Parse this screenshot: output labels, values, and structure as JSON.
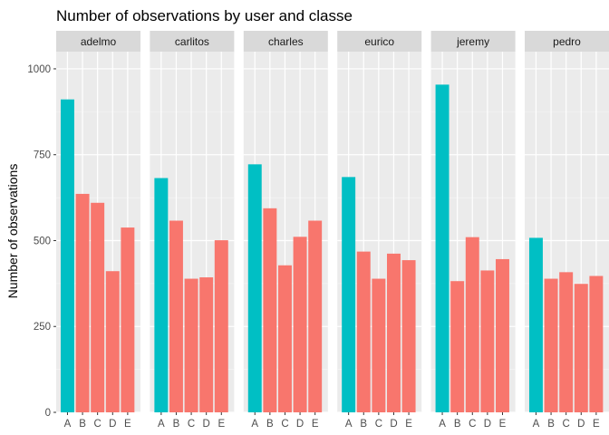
{
  "chart_data": {
    "type": "bar",
    "title": "Number of observations by user and classe",
    "xlabel": "",
    "ylabel": "Number of observations",
    "ylim": [
      0,
      1050
    ],
    "yticks": [
      0,
      250,
      500,
      750,
      1000
    ],
    "categories": [
      "A",
      "B",
      "C",
      "D",
      "E"
    ],
    "facets": [
      {
        "name": "adelmo",
        "values": [
          911,
          636,
          610,
          411,
          538
        ]
      },
      {
        "name": "carlitos",
        "values": [
          682,
          558,
          389,
          393,
          501
        ]
      },
      {
        "name": "charles",
        "values": [
          722,
          594,
          428,
          511,
          558
        ]
      },
      {
        "name": "eurico",
        "values": [
          685,
          468,
          389,
          462,
          443
        ]
      },
      {
        "name": "jeremy",
        "values": [
          954,
          382,
          510,
          413,
          446
        ]
      },
      {
        "name": "pedro",
        "values": [
          508,
          389,
          408,
          374,
          397
        ]
      }
    ],
    "highlight_category": "A",
    "grid": true,
    "legend": "none"
  },
  "colors": {
    "highlight": "#00bfc4",
    "other": "#f8766d",
    "panel": "#ebebeb",
    "grid_major": "#ffffff",
    "grid_minor": "#f4f4f4",
    "strip": "#d9d9d9"
  }
}
